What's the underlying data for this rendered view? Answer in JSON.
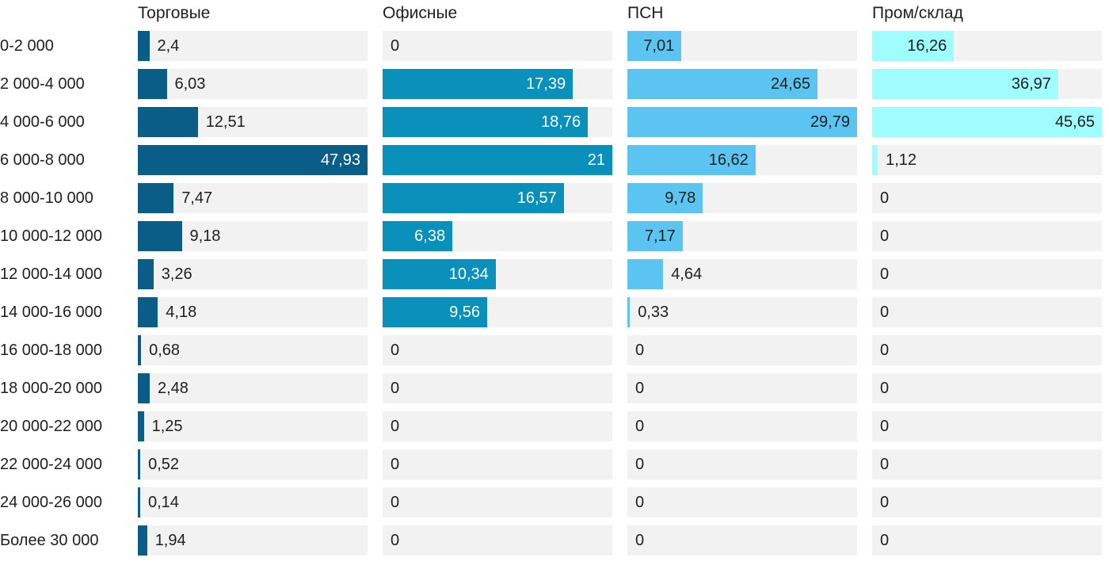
{
  "chart_data": {
    "type": "bar",
    "orientation": "horizontal",
    "scaling": "per-column-max",
    "grid": "off",
    "legend_position": "column-headers-top",
    "track_color": "#f2f2f2",
    "text_color": "#1f1f1f",
    "categories": [
      "0-2 000",
      "2 000-4 000",
      "4 000-6 000",
      "6 000-8 000",
      "8 000-10 000",
      "10 000-12 000",
      "12 000-14 000",
      "14 000-16 000",
      "16 000-18 000",
      "18 000-20 000",
      "20 000-22 000",
      "22 000-24 000",
      "24 000-26 000",
      "Более 30 000"
    ],
    "series": [
      {
        "name": "Торговые",
        "color": "#0a5d87",
        "inside_label_color": "#ffffff",
        "values": [
          2.4,
          6.03,
          12.51,
          47.93,
          7.47,
          9.18,
          3.26,
          4.18,
          0.68,
          2.48,
          1.25,
          0.52,
          0.14,
          1.94
        ],
        "labels": [
          "2,4",
          "6,03",
          "12,51",
          "47,93",
          "7,47",
          "9,18",
          "3,26",
          "4,18",
          "0,68",
          "2,48",
          "1,25",
          "0,52",
          "0,14",
          "1,94"
        ]
      },
      {
        "name": "Офисные",
        "color": "#0990bb",
        "inside_label_color": "#ffffff",
        "values": [
          0,
          17.39,
          18.76,
          21,
          16.57,
          6.38,
          10.34,
          9.56,
          0,
          0,
          0,
          0,
          0,
          0
        ],
        "labels": [
          "0",
          "17,39",
          "18,76",
          "21",
          "16,57",
          "6,38",
          "10,34",
          "9,56",
          "0",
          "0",
          "0",
          "0",
          "0",
          "0"
        ]
      },
      {
        "name": "ПСН",
        "color": "#5bc4f0",
        "inside_label_color": "#1f1f1f",
        "values": [
          7.01,
          24.65,
          29.79,
          16.62,
          9.78,
          7.17,
          4.64,
          0.33,
          0,
          0,
          0,
          0,
          0,
          0
        ],
        "labels": [
          "7,01",
          "24,65",
          "29,79",
          "16,62",
          "9,78",
          "7,17",
          "4,64",
          "0,33",
          "0",
          "0",
          "0",
          "0",
          "0",
          "0"
        ]
      },
      {
        "name": "Пром/склад",
        "color": "#9ffdfd",
        "inside_label_color": "#1f1f1f",
        "values": [
          16.26,
          36.97,
          45.65,
          1.12,
          0,
          0,
          0,
          0,
          0,
          0,
          0,
          0,
          0,
          0
        ],
        "labels": [
          "16,26",
          "36,97",
          "45,65",
          "1,12",
          "0",
          "0",
          "0",
          "0",
          "0",
          "0",
          "0",
          "0",
          "0",
          "0"
        ]
      }
    ]
  }
}
